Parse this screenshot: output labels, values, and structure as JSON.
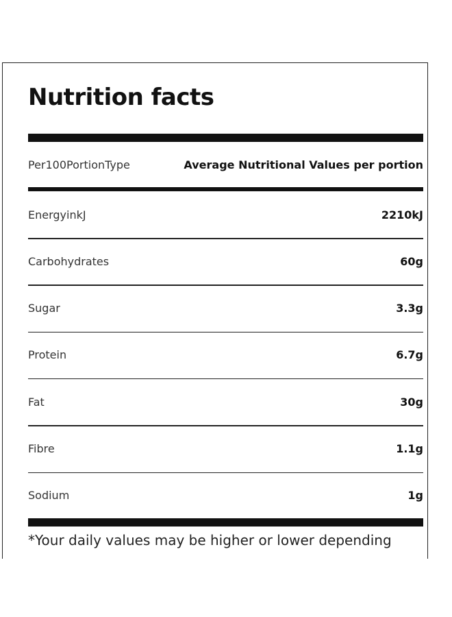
{
  "title": "Nutrition facts",
  "table": {
    "header": [
      "Per100PortionType",
      "Average Nutritional Values per portion"
    ],
    "rows": [
      [
        "EnergyinkJ",
        "2210kJ"
      ],
      [
        "Carbohydrates",
        "60g"
      ],
      [
        "Sugar",
        "3.3g"
      ],
      [
        "Protein",
        "6.7g"
      ],
      [
        "Fat",
        "30g"
      ],
      [
        "Fibre",
        "1.1g"
      ],
      [
        "Sodium",
        "1g"
      ]
    ]
  },
  "footnote": "*Your daily values may be higher or lower depending"
}
